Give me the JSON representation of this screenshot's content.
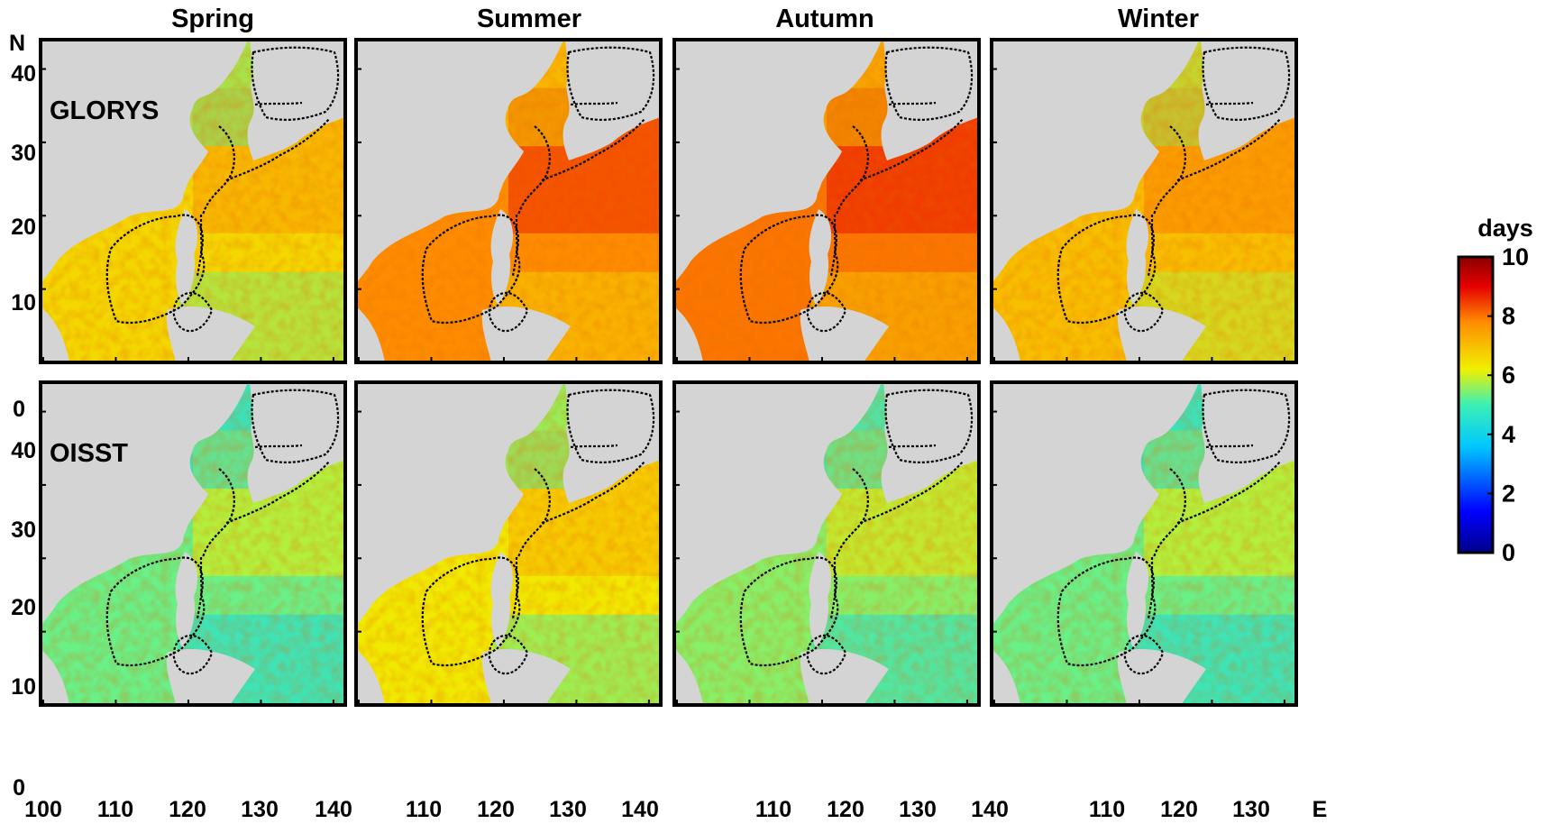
{
  "chart_data": {
    "type": "heatmap",
    "variable_unit": "days",
    "colorbar": {
      "label": "days",
      "range": [
        0,
        10
      ],
      "ticks": [
        0,
        2,
        4,
        6,
        8,
        10
      ],
      "colors": [
        "#00008b",
        "#0000ff",
        "#00c8ff",
        "#3cf0b4",
        "#f0f000",
        "#ff8c00",
        "#e60000",
        "#8b0000"
      ]
    },
    "columns": [
      "Spring",
      "Summer",
      "Autumn",
      "Winter"
    ],
    "rows": [
      "GLORYS",
      "OISST"
    ],
    "x_axis": {
      "ticks_full": [
        "100",
        "110",
        "120",
        "130",
        "140"
      ],
      "ticks_bottom_middle": [
        "110",
        "120",
        "130",
        "140"
      ],
      "ticks_bottom_last": [
        "110",
        "120",
        "130"
      ],
      "end_label": "E",
      "range": [
        100,
        142
      ]
    },
    "y_axis": {
      "ticks": [
        "0",
        "10",
        "20",
        "30",
        "40"
      ],
      "end_label": "N",
      "range": [
        0,
        44
      ]
    },
    "panels": [
      {
        "row": "GLORYS",
        "season": "Spring",
        "typical_value": 6.6
      },
      {
        "row": "GLORYS",
        "season": "Summer",
        "typical_value": 7.8
      },
      {
        "row": "GLORYS",
        "season": "Autumn",
        "typical_value": 8.0
      },
      {
        "row": "GLORYS",
        "season": "Winter",
        "typical_value": 7.0
      },
      {
        "row": "OISST",
        "season": "Spring",
        "typical_value": 5.3
      },
      {
        "row": "OISST",
        "season": "Summer",
        "typical_value": 6.3
      },
      {
        "row": "OISST",
        "season": "Autumn",
        "typical_value": 5.5
      },
      {
        "row": "OISST",
        "season": "Winter",
        "typical_value": 5.3
      }
    ],
    "land_color": "#d4d4d4"
  }
}
